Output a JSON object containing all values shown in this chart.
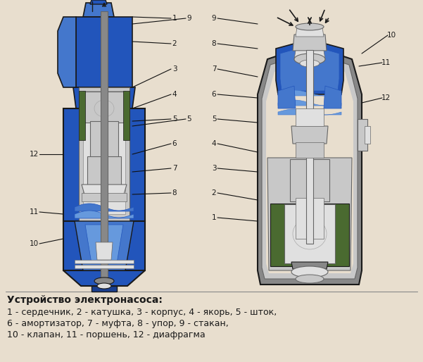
{
  "bg": "#e8dece",
  "title": "Устройство электронасоса:",
  "lines": [
    "1 - сердечник, 2 - катушка, 3 - корпус, 4 - якорь, 5 - шток,",
    "6 - амортизатор, 7 - муфта, 8 - упор, 9 - стакан,",
    "10 - клапан, 11 - поршень, 12 - диафрагма"
  ],
  "colors": {
    "bg": "#e8dece",
    "blue1": "#1a3f8f",
    "blue2": "#2255bb",
    "blue3": "#4477cc",
    "blue4": "#6699dd",
    "green1": "#4a6a30",
    "green2": "#5a7a40",
    "gray1": "#aaaaaa",
    "gray2": "#c8c8c8",
    "gray3": "#e0e0e0",
    "gray4": "#888888",
    "gray5": "#666666",
    "silver": "#d0d0d0",
    "dark": "#1a1a1a",
    "black": "#000000",
    "white": "#f8f8f8",
    "beige": "#e8dece"
  }
}
